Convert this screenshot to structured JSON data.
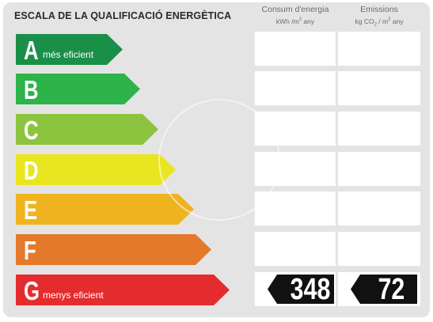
{
  "header": {
    "title": "ESCALA DE LA QUALIFICACIÓ ENERGÈTICA",
    "consum_label": "Consum d'energia",
    "consum_unit_pre": "kWh /m",
    "consum_unit_sup": "2",
    "consum_unit_post": " any",
    "emissions_label": "Emissions",
    "emissions_unit_pre": "kg CO",
    "emissions_unit_sub": "2",
    "emissions_unit_mid": " / m",
    "emissions_unit_sup": "2",
    "emissions_unit_post": " any"
  },
  "scale": [
    {
      "letter": "A",
      "label": "més eficient",
      "color": "#1a8f48"
    },
    {
      "letter": "B",
      "label": "",
      "color": "#2db34a"
    },
    {
      "letter": "C",
      "label": "",
      "color": "#8cc43f"
    },
    {
      "letter": "D",
      "label": "",
      "color": "#e9e621"
    },
    {
      "letter": "E",
      "label": "",
      "color": "#eeb31f"
    },
    {
      "letter": "F",
      "label": "",
      "color": "#e4792b"
    },
    {
      "letter": "G",
      "label": "menys eficient",
      "color": "#e42c2e"
    }
  ],
  "rating": {
    "class": "G",
    "consum_value": "348",
    "emissions_value": "72"
  }
}
